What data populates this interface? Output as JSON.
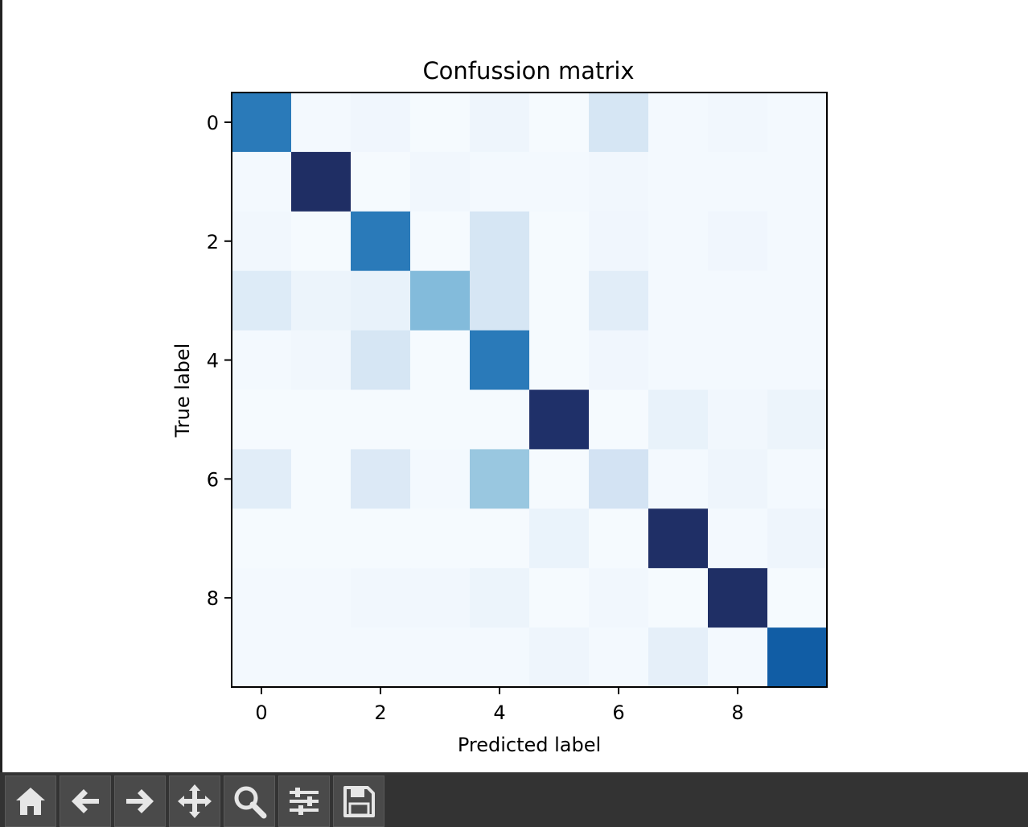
{
  "chart_data": {
    "type": "heatmap",
    "title": "Confussion matrix",
    "xlabel": "Predicted label",
    "ylabel": "True label",
    "x_ticks": [
      "0",
      "2",
      "4",
      "6",
      "8"
    ],
    "y_ticks": [
      "0",
      "2",
      "4",
      "6",
      "8"
    ],
    "colormap": "Blues",
    "matrix": [
      [
        0.78,
        0.02,
        0.04,
        0.01,
        0.05,
        0.01,
        0.18,
        0.02,
        0.03,
        0.02
      ],
      [
        0.02,
        1.0,
        0.01,
        0.03,
        0.02,
        0.02,
        0.03,
        0.02,
        0.02,
        0.02
      ],
      [
        0.03,
        0.01,
        0.78,
        0.01,
        0.18,
        0.01,
        0.04,
        0.02,
        0.04,
        0.02
      ],
      [
        0.14,
        0.06,
        0.08,
        0.48,
        0.18,
        0.01,
        0.12,
        0.02,
        0.02,
        0.02
      ],
      [
        0.02,
        0.03,
        0.18,
        0.01,
        0.78,
        0.01,
        0.04,
        0.02,
        0.02,
        0.02
      ],
      [
        0.01,
        0.01,
        0.01,
        0.01,
        0.01,
        0.96,
        0.01,
        0.08,
        0.03,
        0.06
      ],
      [
        0.12,
        0.01,
        0.15,
        0.02,
        0.42,
        0.01,
        0.2,
        0.02,
        0.05,
        0.02
      ],
      [
        0.01,
        0.01,
        0.01,
        0.01,
        0.01,
        0.07,
        0.01,
        0.98,
        0.02,
        0.05
      ],
      [
        0.02,
        0.02,
        0.03,
        0.03,
        0.06,
        0.01,
        0.03,
        0.01,
        0.99,
        0.01
      ],
      [
        0.02,
        0.02,
        0.02,
        0.02,
        0.02,
        0.05,
        0.02,
        0.1,
        0.02,
        0.9
      ]
    ]
  },
  "toolbar": {
    "buttons": [
      {
        "name": "home-button",
        "icon": "home-icon"
      },
      {
        "name": "back-button",
        "icon": "arrow-left-icon"
      },
      {
        "name": "forward-button",
        "icon": "arrow-right-icon"
      },
      {
        "name": "pan-button",
        "icon": "move-icon"
      },
      {
        "name": "zoom-button",
        "icon": "magnifier-icon"
      },
      {
        "name": "configure-subplots-button",
        "icon": "sliders-icon"
      },
      {
        "name": "save-button",
        "icon": "floppy-disk-icon"
      }
    ],
    "icon_color": "#e6e6e6"
  }
}
